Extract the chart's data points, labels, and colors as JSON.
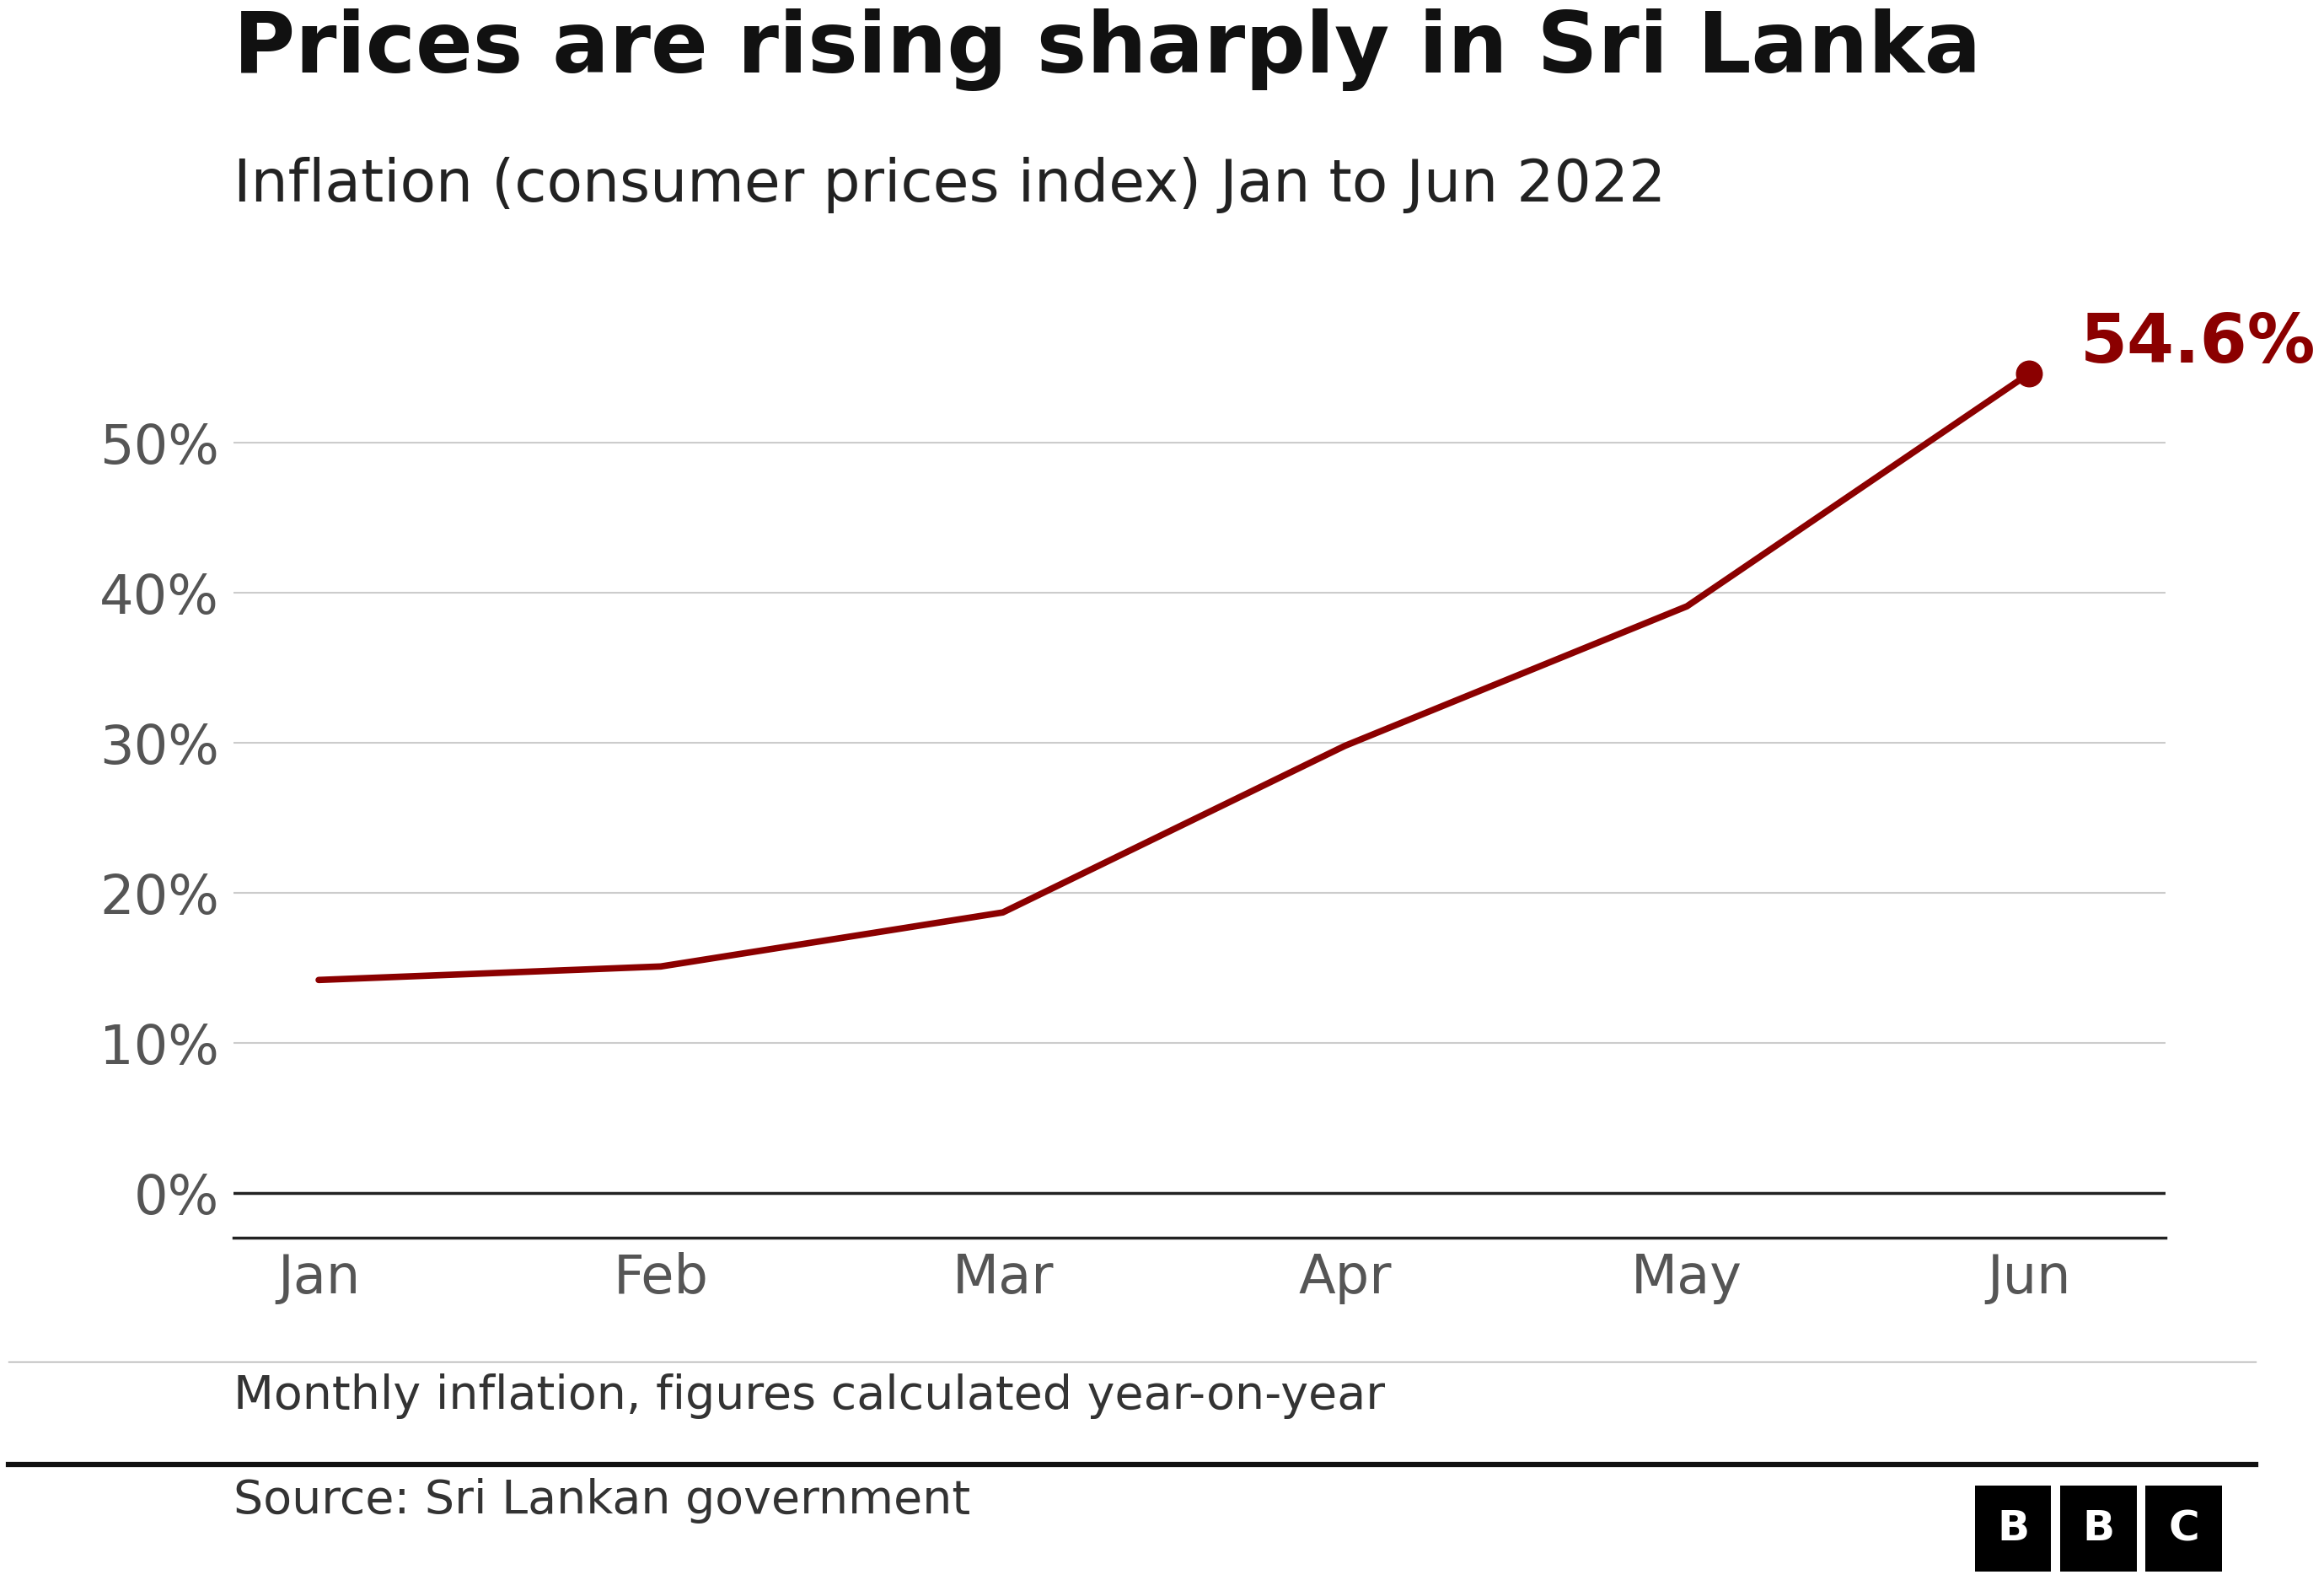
{
  "title": "Prices are rising sharply in Sri Lanka",
  "subtitle": "Inflation (consumer prices index) Jan to Jun 2022",
  "footnote": "Monthly inflation, figures calculated year-on-year",
  "source": "Source: Sri Lankan government",
  "months": [
    "Jan",
    "Feb",
    "Mar",
    "Apr",
    "May",
    "Jun"
  ],
  "values": [
    14.2,
    15.1,
    18.7,
    29.8,
    39.1,
    54.6
  ],
  "line_color": "#8B0000",
  "marker_color": "#8B0000",
  "annotation_text": "54.6%",
  "annotation_color": "#8B0000",
  "ylabel_ticks": [
    0,
    10,
    20,
    30,
    40,
    50
  ],
  "ylim": [
    -3,
    63
  ],
  "background_color": "#ffffff",
  "grid_color": "#cccccc",
  "title_fontsize": 72,
  "subtitle_fontsize": 50,
  "tick_fontsize": 46,
  "annotation_fontsize": 58,
  "footnote_fontsize": 40,
  "source_fontsize": 40,
  "bbc_fontsize": 36
}
